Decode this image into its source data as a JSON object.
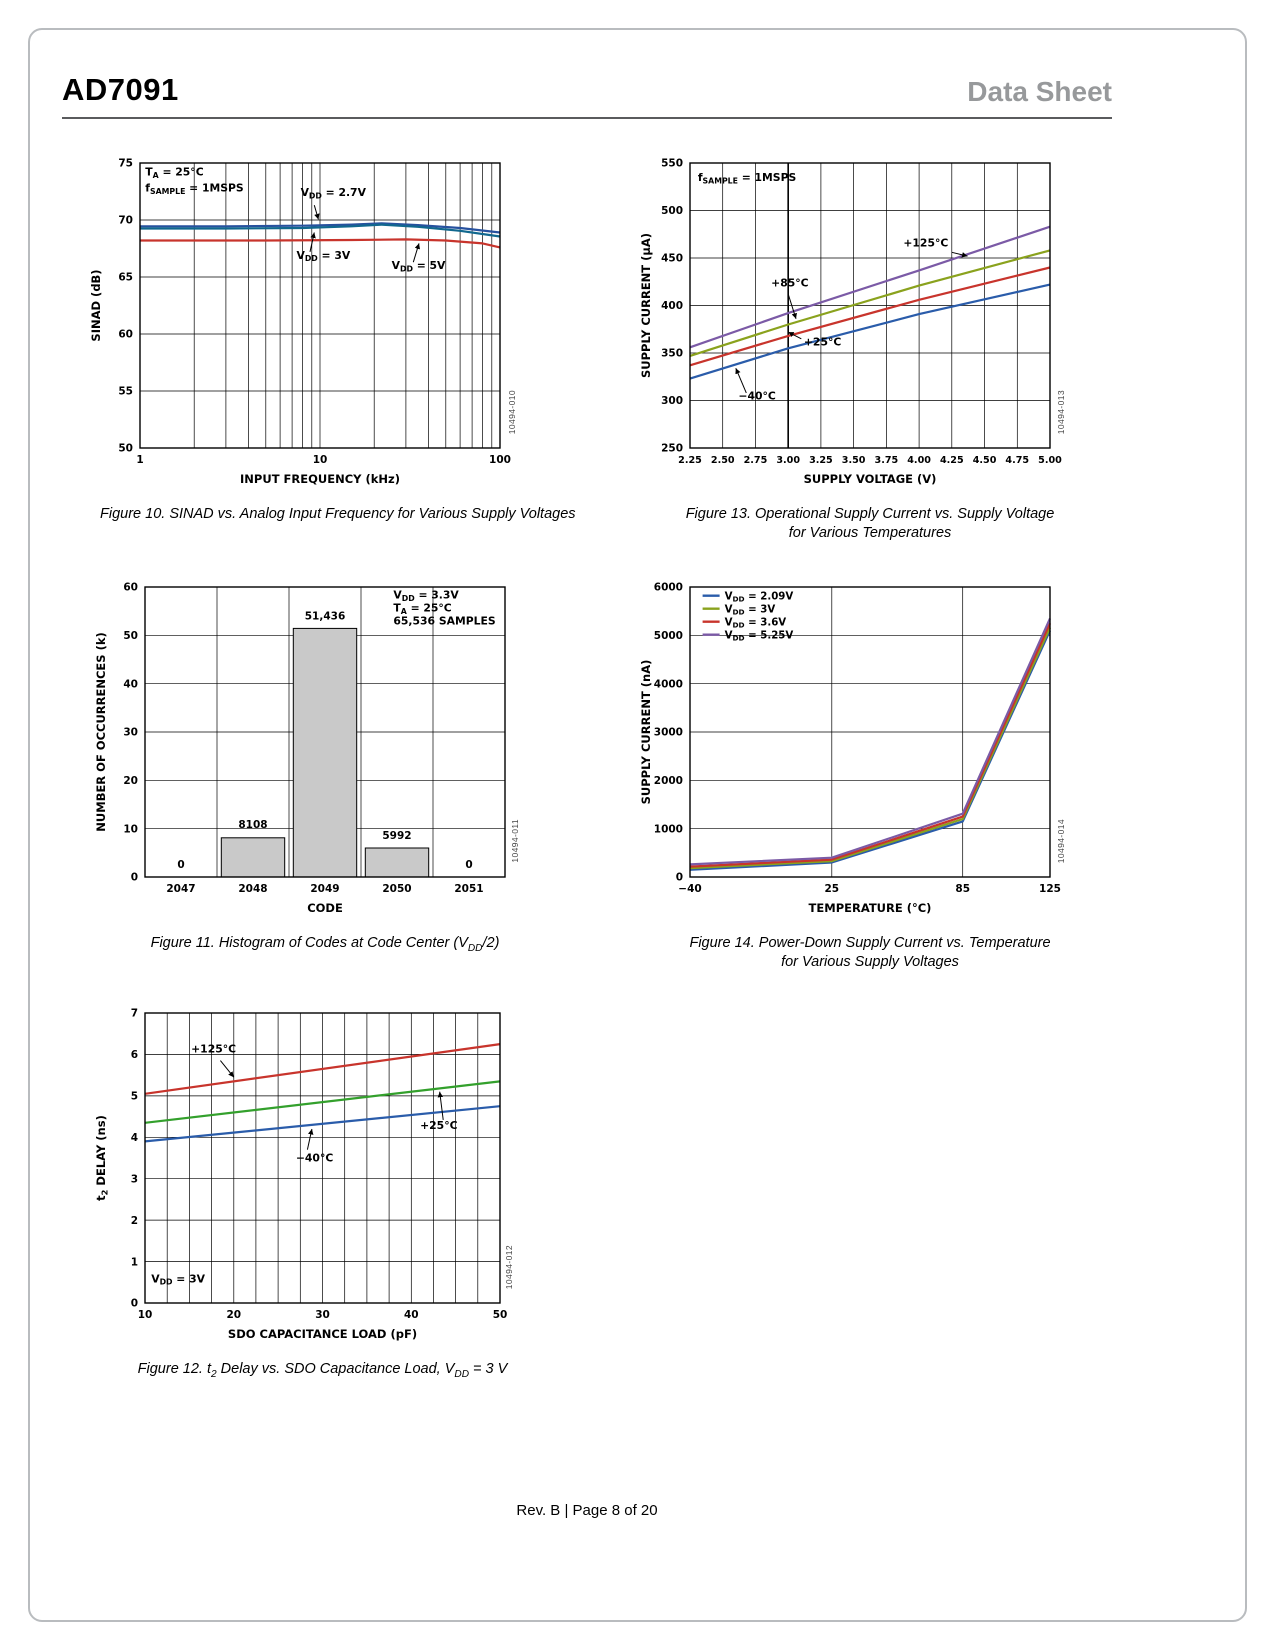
{
  "header": {
    "title": "AD7091",
    "doc_label": "Data Sheet"
  },
  "footer": "Rev. B | Page 8 of 20",
  "chart_data": [
    {
      "id": "fig10",
      "type": "line",
      "x": {
        "scale": "log",
        "min": 1,
        "max": 100,
        "title": "INPUT FREQUENCY (kHz)",
        "ticks": [
          {
            "v": 1,
            "l": "1"
          },
          {
            "v": 10,
            "l": "10"
          },
          {
            "v": 100,
            "l": "100"
          }
        ],
        "minor": [
          2,
          3,
          4,
          5,
          6,
          7,
          8,
          9,
          20,
          30,
          40,
          50,
          60,
          70,
          80,
          90
        ]
      },
      "y": {
        "min": 50,
        "max": 75,
        "title": "SINAD (dB)",
        "ticks": [
          {
            "v": 50,
            "l": "50"
          },
          {
            "v": 55,
            "l": "55"
          },
          {
            "v": 60,
            "l": "60"
          },
          {
            "v": 65,
            "l": "65"
          },
          {
            "v": 70,
            "l": "70"
          },
          {
            "v": 75,
            "l": "75"
          }
        ]
      },
      "series": [
        {
          "name": "V~DD~ = 2.7V",
          "color": "#27519e",
          "points": [
            [
              1,
              69.45
            ],
            [
              3,
              69.45
            ],
            [
              8,
              69.5
            ],
            [
              15,
              69.6
            ],
            [
              22,
              69.7
            ],
            [
              35,
              69.55
            ],
            [
              60,
              69.3
            ],
            [
              100,
              68.9
            ]
          ]
        },
        {
          "name": "V~DD~ = 3V",
          "color": "#11688e",
          "points": [
            [
              1,
              69.25
            ],
            [
              3,
              69.25
            ],
            [
              8,
              69.3
            ],
            [
              15,
              69.45
            ],
            [
              22,
              69.6
            ],
            [
              35,
              69.4
            ],
            [
              60,
              69.05
            ],
            [
              100,
              68.55
            ]
          ]
        },
        {
          "name": "V~DD~ = 5V",
          "color": "#c8342c",
          "points": [
            [
              1,
              68.2
            ],
            [
              5,
              68.2
            ],
            [
              15,
              68.25
            ],
            [
              30,
              68.3
            ],
            [
              50,
              68.2
            ],
            [
              80,
              67.95
            ],
            [
              100,
              67.6
            ]
          ]
        }
      ],
      "annotations": [
        {
          "text": "T~A~ = 25°C",
          "x": 1.07,
          "y": 73.9
        },
        {
          "text": "f~SAMPLE~ = 1MSPS",
          "x": 1.07,
          "y": 72.5
        },
        {
          "text": "V~DD~ = 2.7V",
          "x": 7.8,
          "y": 72.1,
          "arrow": [
            9.3,
            71.3,
            9.8,
            70.05
          ]
        },
        {
          "text": "V~DD~ = 3V",
          "x": 7.4,
          "y": 66.6,
          "arrow": [
            8.8,
            67.2,
            9.3,
            68.9
          ]
        },
        {
          "text": "V~DD~ = 5V",
          "x": 25,
          "y": 65.7,
          "arrow": [
            33,
            66.3,
            35.5,
            67.95
          ]
        }
      ],
      "caption": [
        "Figure 10. SINAD vs. Analog Input Frequency for Various Supply Voltages"
      ],
      "side_code": "10494-010"
    },
    {
      "id": "fig13",
      "type": "line",
      "x": {
        "scale": "linear",
        "min": 2.25,
        "max": 5.0,
        "title": "SUPPLY VOLTAGE (V)",
        "tickFs": 9.6,
        "ticks": [
          {
            "v": 2.25,
            "l": "2.25"
          },
          {
            "v": 2.5,
            "l": "2.50"
          },
          {
            "v": 2.75,
            "l": "2.75"
          },
          {
            "v": 3.0,
            "l": "3.00"
          },
          {
            "v": 3.25,
            "l": "3.25"
          },
          {
            "v": 3.5,
            "l": "3.50"
          },
          {
            "v": 3.75,
            "l": "3.75"
          },
          {
            "v": 4.0,
            "l": "4.00"
          },
          {
            "v": 4.25,
            "l": "4.25"
          },
          {
            "v": 4.5,
            "l": "4.50"
          },
          {
            "v": 4.75,
            "l": "4.75"
          },
          {
            "v": 5.0,
            "l": "5.00"
          }
        ],
        "emph": [
          3.0
        ]
      },
      "y": {
        "min": 250,
        "max": 550,
        "title": "SUPPLY CURRENT (µA)",
        "ticks": [
          {
            "v": 250,
            "l": "250"
          },
          {
            "v": 300,
            "l": "300"
          },
          {
            "v": 350,
            "l": "350"
          },
          {
            "v": 400,
            "l": "400"
          },
          {
            "v": 450,
            "l": "450"
          },
          {
            "v": 500,
            "l": "500"
          },
          {
            "v": 550,
            "l": "550"
          }
        ]
      },
      "series": [
        {
          "name": "+125°C",
          "color": "#7b5aa6",
          "points": [
            [
              2.25,
              356
            ],
            [
              3.0,
              392
            ],
            [
              4.0,
              437
            ],
            [
              5.0,
              483
            ]
          ]
        },
        {
          "name": "+85°C",
          "color": "#8aa21d",
          "points": [
            [
              2.25,
              347
            ],
            [
              3.0,
              380
            ],
            [
              4.0,
              421
            ],
            [
              5.0,
              458
            ]
          ]
        },
        {
          "name": "+25°C",
          "color": "#c8342c",
          "points": [
            [
              2.25,
              337
            ],
            [
              3.0,
              368
            ],
            [
              4.0,
              406
            ],
            [
              5.0,
              440
            ]
          ]
        },
        {
          "name": "−40°C",
          "color": "#2a5caa",
          "points": [
            [
              2.25,
              323
            ],
            [
              3.0,
              355
            ],
            [
              4.0,
              391
            ],
            [
              5.0,
              422
            ]
          ]
        }
      ],
      "annotations": [
        {
          "text": "f~SAMPLE~ = 1MSPS",
          "x": 2.31,
          "y": 531
        },
        {
          "text": "+125°C",
          "x": 3.88,
          "y": 462,
          "arrow": [
            4.25,
            456,
            4.37,
            452
          ]
        },
        {
          "text": "+85°C",
          "x": 2.87,
          "y": 420,
          "arrow": [
            3.0,
            412,
            3.06,
            386
          ]
        },
        {
          "text": "+25°C",
          "x": 3.12,
          "y": 358,
          "arrow": [
            3.1,
            365,
            3.0,
            372
          ]
        },
        {
          "text": "−40°C",
          "x": 2.62,
          "y": 301,
          "arrow": [
            2.68,
            308,
            2.6,
            334
          ]
        }
      ],
      "caption": [
        "Figure 13. Operational Supply Current vs. Supply Voltage",
        "for Various Temperatures"
      ],
      "side_code": "10494-013"
    },
    {
      "id": "fig11",
      "type": "bar",
      "x": {
        "scale": "linear",
        "min": 0,
        "max": 5,
        "title": "CODE",
        "grid": false,
        "ticks": [
          {
            "v": 0.5,
            "l": "2047"
          },
          {
            "v": 1.5,
            "l": "2048"
          },
          {
            "v": 2.5,
            "l": "2049"
          },
          {
            "v": 3.5,
            "l": "2050"
          },
          {
            "v": 4.5,
            "l": "2051"
          }
        ],
        "minor": [
          1,
          2,
          3,
          4
        ]
      },
      "y": {
        "min": 0,
        "max": 60,
        "title": "NUMBER OF OCCURRENCES (k)",
        "ticks": [
          {
            "v": 0,
            "l": "0"
          },
          {
            "v": 10,
            "l": "10"
          },
          {
            "v": 20,
            "l": "20"
          },
          {
            "v": 30,
            "l": "30"
          },
          {
            "v": 40,
            "l": "40"
          },
          {
            "v": 50,
            "l": "50"
          },
          {
            "v": 60,
            "l": "60"
          }
        ]
      },
      "bars": {
        "fill": "#c9c9c9",
        "categories": [
          "2047",
          "2048",
          "2049",
          "2050",
          "2051"
        ],
        "counts": [
          0,
          8108,
          51436,
          5992,
          0
        ],
        "values_k": [
          0,
          8.108,
          51.436,
          5.992,
          0
        ],
        "labels": [
          {
            "text": "0",
            "y": 1.9
          },
          {
            "text": "8108",
            "y": 10.1
          },
          {
            "text": "51,436",
            "y": 53.3
          },
          {
            "text": "5992",
            "y": 7.9
          },
          {
            "text": "0",
            "y": 1.9
          }
        ]
      },
      "annotations": [
        {
          "text": "V~DD~ = 3.3V",
          "x": 3.45,
          "y": 57.6
        },
        {
          "text": "T~A~ = 25°C",
          "x": 3.45,
          "y": 54.9
        },
        {
          "text": "65,536 SAMPLES",
          "x": 3.45,
          "y": 52.2
        }
      ],
      "caption": [
        "Figure 11. Histogram of Codes at Code Center (V~DD~/2)"
      ],
      "side_code": "10494-011"
    },
    {
      "id": "fig14",
      "type": "line",
      "x": {
        "scale": "linear",
        "min": -40,
        "max": 125,
        "title": "TEMPERATURE (°C)",
        "ticks": [
          {
            "v": -40,
            "l": "−40"
          },
          {
            "v": 25,
            "l": "25"
          },
          {
            "v": 85,
            "l": "85"
          },
          {
            "v": 125,
            "l": "125"
          }
        ]
      },
      "y": {
        "min": 0,
        "max": 6000,
        "title": "SUPPLY CURRENT (nA)",
        "ticks": [
          {
            "v": 0,
            "l": "0"
          },
          {
            "v": 1000,
            "l": "1000"
          },
          {
            "v": 2000,
            "l": "2000"
          },
          {
            "v": 3000,
            "l": "3000"
          },
          {
            "v": 4000,
            "l": "4000"
          },
          {
            "v": 5000,
            "l": "5000"
          },
          {
            "v": 6000,
            "l": "6000"
          }
        ]
      },
      "series": [
        {
          "name": "V~DD~ = 2.09V",
          "color": "#2a5caa",
          "points": [
            [
              -40,
              150
            ],
            [
              25,
              300
            ],
            [
              85,
              1150
            ],
            [
              125,
              5100
            ]
          ]
        },
        {
          "name": "V~DD~ = 3V",
          "color": "#8aa21d",
          "points": [
            [
              -40,
              185
            ],
            [
              25,
              330
            ],
            [
              85,
              1200
            ],
            [
              125,
              5160
            ]
          ]
        },
        {
          "name": "V~DD~ = 3.6V",
          "color": "#c8342c",
          "points": [
            [
              -40,
              215
            ],
            [
              25,
              360
            ],
            [
              85,
              1250
            ],
            [
              125,
              5250
            ]
          ]
        },
        {
          "name": "V~DD~ = 5.25V",
          "color": "#7b5aa6",
          "points": [
            [
              -40,
              260
            ],
            [
              25,
              400
            ],
            [
              85,
              1310
            ],
            [
              125,
              5350
            ]
          ]
        }
      ],
      "legend": {
        "x": 0.035,
        "y": 0.03,
        "entries": [
          {
            "color": "#2a5caa",
            "label": "V~DD~ = 2.09V"
          },
          {
            "color": "#8aa21d",
            "label": "V~DD~ = 3V"
          },
          {
            "color": "#c8342c",
            "label": "V~DD~ = 3.6V"
          },
          {
            "color": "#7b5aa6",
            "label": "V~DD~ = 5.25V"
          }
        ]
      },
      "caption": [
        "Figure 14. Power-Down Supply Current vs. Temperature",
        "for Various Supply Voltages"
      ],
      "side_code": "10494-014"
    },
    {
      "id": "fig12",
      "type": "line",
      "x": {
        "scale": "linear",
        "min": 10,
        "max": 50,
        "title": "SDO CAPACITANCE LOAD (pF)",
        "ticks": [
          {
            "v": 10,
            "l": "10"
          },
          {
            "v": 20,
            "l": "20"
          },
          {
            "v": 30,
            "l": "30"
          },
          {
            "v": 40,
            "l": "40"
          },
          {
            "v": 50,
            "l": "50"
          }
        ],
        "minor": [
          12.5,
          15,
          17.5,
          22.5,
          25,
          27.5,
          32.5,
          35,
          37.5,
          42.5,
          45,
          47.5
        ]
      },
      "y": {
        "min": 0,
        "max": 7,
        "title": "t~2~ DELAY (ns)",
        "ticks": [
          {
            "v": 0,
            "l": "0"
          },
          {
            "v": 1,
            "l": "1"
          },
          {
            "v": 2,
            "l": "2"
          },
          {
            "v": 3,
            "l": "3"
          },
          {
            "v": 4,
            "l": "4"
          },
          {
            "v": 5,
            "l": "5"
          },
          {
            "v": 6,
            "l": "6"
          },
          {
            "v": 7,
            "l": "7"
          }
        ]
      },
      "series": [
        {
          "name": "+125°C",
          "color": "#c8342c",
          "points": [
            [
              10,
              5.05
            ],
            [
              50,
              6.25
            ]
          ]
        },
        {
          "name": "+25°C",
          "color": "#33a02c",
          "points": [
            [
              10,
              4.35
            ],
            [
              50,
              5.35
            ]
          ]
        },
        {
          "name": "−40°C",
          "color": "#2a5caa",
          "points": [
            [
              10,
              3.9
            ],
            [
              50,
              4.75
            ]
          ]
        }
      ],
      "annotations": [
        {
          "text": "+125°C",
          "x": 15.2,
          "y": 6.05,
          "arrow": [
            18.5,
            5.85,
            20,
            5.45
          ]
        },
        {
          "text": "−40°C",
          "x": 27,
          "y": 3.42,
          "arrow": [
            28.3,
            3.7,
            28.8,
            4.2
          ]
        },
        {
          "text": "+25°C",
          "x": 41,
          "y": 4.2,
          "arrow": [
            43.6,
            4.42,
            43.2,
            5.1
          ]
        },
        {
          "text": "V~DD~ = 3V",
          "x": 10.7,
          "y": 0.5
        }
      ],
      "caption": [
        "Figure 12. t~2~ Delay vs. SDO Capacitance Load, V~DD~ = 3 V"
      ],
      "side_code": "10494-012"
    }
  ]
}
